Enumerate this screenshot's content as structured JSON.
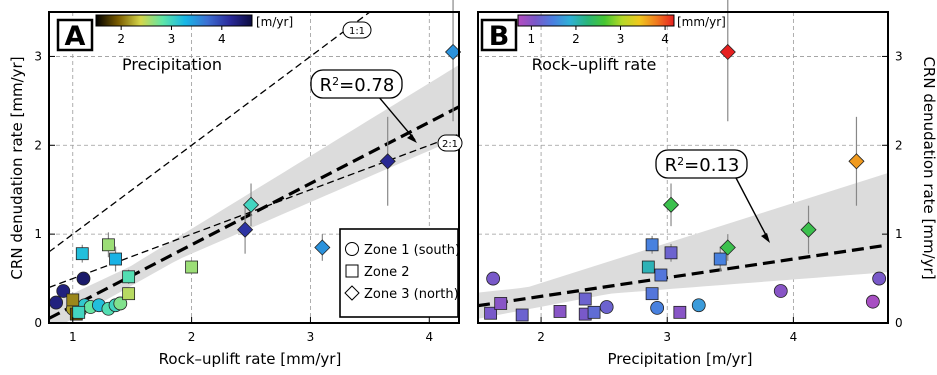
{
  "chart_data": [
    {
      "type": "scatter",
      "panel_label": "A",
      "xlabel": "Rock–uplift rate [mm/yr]",
      "ylabel": "CRN denudation rate [mm/yr]",
      "xlim": [
        0.8,
        4.25
      ],
      "ylim": [
        0,
        3.5
      ],
      "xticks": [
        1,
        2,
        3,
        4
      ],
      "yticks": [
        0,
        1,
        2,
        3
      ],
      "grid": true,
      "colorbar": {
        "label": "[m/yr]",
        "title": "Precipitation",
        "ticks": [
          2,
          3,
          4
        ],
        "range": [
          1.5,
          4.6
        ],
        "colors": [
          "#000000",
          "#7a5c00",
          "#d6d64a",
          "#5ee6a8",
          "#17b7e6",
          "#3d6fd2",
          "#2b2b9c",
          "#0c0c40"
        ],
        "placement": "top-left"
      },
      "reference_lines": [
        {
          "label": "1:1",
          "slope": 1
        },
        {
          "label": "2:1",
          "slope": 0.5
        }
      ],
      "fit": {
        "slope": 0.69,
        "intercept": -0.5,
        "ci_low_intercept": -0.38,
        "ci_low_slope": 0.58,
        "ci_high_intercept": -0.58,
        "ci_high_slope": 0.82
      },
      "annotation": {
        "r2_prefix": "R",
        "r2_sup": "2",
        "r2_value": "=0.78"
      },
      "legend": {
        "placement": "bottom-right",
        "entries": [
          {
            "shape": "circle",
            "label": "Zone 1 (south)"
          },
          {
            "shape": "square",
            "label": "Zone 2"
          },
          {
            "shape": "diamond",
            "label": "Zone 3 (north)"
          }
        ]
      },
      "points": [
        {
          "zone": 1,
          "x": 0.86,
          "y": 0.23,
          "c": 4.3,
          "err": 0.0
        },
        {
          "zone": 1,
          "x": 0.92,
          "y": 0.36,
          "c": 4.3,
          "err": 0.0
        },
        {
          "zone": 1,
          "x": 1.09,
          "y": 0.5,
          "c": 4.4,
          "err": 0.0
        },
        {
          "zone": 1,
          "x": 1.0,
          "y": 0.16,
          "c": 2.2,
          "err": 0.0
        },
        {
          "zone": 1,
          "x": 1.06,
          "y": 0.14,
          "c": 2.6,
          "err": 0.0
        },
        {
          "zone": 1,
          "x": 1.1,
          "y": 0.2,
          "c": 3.1,
          "err": 0.0
        },
        {
          "zone": 1,
          "x": 1.15,
          "y": 0.18,
          "c": 2.8,
          "err": 0.0
        },
        {
          "zone": 1,
          "x": 1.22,
          "y": 0.2,
          "c": 3.2,
          "err": 0.0
        },
        {
          "zone": 1,
          "x": 1.3,
          "y": 0.16,
          "c": 2.9,
          "err": 0.0
        },
        {
          "zone": 1,
          "x": 1.36,
          "y": 0.2,
          "c": 3.0,
          "err": 0.0
        },
        {
          "zone": 1,
          "x": 1.4,
          "y": 0.22,
          "c": 2.7,
          "err": 0.0
        },
        {
          "zone": 2,
          "x": 1.0,
          "y": 0.26,
          "c": 2.1,
          "err": 0.0
        },
        {
          "zone": 2,
          "x": 1.03,
          "y": 0.1,
          "c": 1.9,
          "err": 0.0
        },
        {
          "zone": 2,
          "x": 1.05,
          "y": 0.12,
          "c": 3.0,
          "err": 0.0
        },
        {
          "zone": 2,
          "x": 1.08,
          "y": 0.78,
          "c": 3.2,
          "err": 0.1
        },
        {
          "zone": 2,
          "x": 1.3,
          "y": 0.88,
          "c": 2.6,
          "err": 0.14
        },
        {
          "zone": 2,
          "x": 1.36,
          "y": 0.72,
          "c": 3.3,
          "err": 0.14
        },
        {
          "zone": 2,
          "x": 1.47,
          "y": 0.52,
          "c": 2.9,
          "err": 0.08
        },
        {
          "zone": 2,
          "x": 1.47,
          "y": 0.33,
          "c": 2.5,
          "err": 0.06
        },
        {
          "zone": 2,
          "x": 2.0,
          "y": 0.63,
          "c": 2.6,
          "err": 0.06
        },
        {
          "zone": 3,
          "x": 2.45,
          "y": 1.05,
          "c": 4.1,
          "err": 0.27
        },
        {
          "zone": 3,
          "x": 2.5,
          "y": 1.33,
          "c": 3.0,
          "err": 0.24
        },
        {
          "zone": 3,
          "x": 3.1,
          "y": 0.85,
          "c": 3.5,
          "err": 0.15
        },
        {
          "zone": 3,
          "x": 3.65,
          "y": 1.82,
          "c": 4.2,
          "err": 0.5
        },
        {
          "zone": 3,
          "x": 4.2,
          "y": 3.05,
          "c": 3.5,
          "err": 0.78
        }
      ]
    },
    {
      "type": "scatter",
      "panel_label": "B",
      "xlabel": "Precipitation [m/yr]",
      "ylabel": "CRN denudation rate [mm/yr]",
      "xlim": [
        1.5,
        4.75
      ],
      "ylim": [
        0,
        3.5
      ],
      "xticks": [
        2,
        3,
        4
      ],
      "yticks": [
        0,
        1,
        2,
        3
      ],
      "grid": true,
      "colorbar": {
        "label": "[mm/yr]",
        "title": "Rock–uplift rate",
        "ticks": [
          1,
          2,
          3,
          4
        ],
        "range": [
          0.7,
          4.2
        ],
        "colors": [
          "#b64cc0",
          "#7a58c8",
          "#4a7ee0",
          "#2fb0d6",
          "#29b57a",
          "#46c632",
          "#b5d928",
          "#f0c81e",
          "#f07a1e",
          "#e62020"
        ],
        "placement": "top-left"
      },
      "fit": {
        "slope": 0.21,
        "intercept": -0.12,
        "ci_low_intercept": 0.05,
        "ci_low_slope": 0.11,
        "ci_high_intercept": -0.45,
        "ci_high_slope": 0.45
      },
      "annotation": {
        "r2_prefix": "R",
        "r2_sup": "2",
        "r2_value": "=0.13"
      },
      "points": [
        {
          "zone": 1,
          "x": 1.62,
          "y": 0.5,
          "c": 1.1,
          "err": 0.0
        },
        {
          "zone": 1,
          "x": 2.52,
          "y": 0.18,
          "c": 1.2,
          "err": 0.0
        },
        {
          "zone": 1,
          "x": 3.25,
          "y": 0.2,
          "c": 1.7,
          "err": 0.0
        },
        {
          "zone": 1,
          "x": 3.9,
          "y": 0.36,
          "c": 1.0,
          "err": 0.0
        },
        {
          "zone": 1,
          "x": 4.63,
          "y": 0.24,
          "c": 0.8,
          "err": 0.0
        },
        {
          "zone": 1,
          "x": 4.68,
          "y": 0.5,
          "c": 1.1,
          "err": 0.0
        },
        {
          "zone": 1,
          "x": 2.92,
          "y": 0.17,
          "c": 1.5,
          "err": 0.0
        },
        {
          "zone": 2,
          "x": 1.6,
          "y": 0.11,
          "c": 1.1,
          "err": 0.0
        },
        {
          "zone": 2,
          "x": 1.68,
          "y": 0.22,
          "c": 1.0,
          "err": 0.0
        },
        {
          "zone": 2,
          "x": 1.85,
          "y": 0.09,
          "c": 1.2,
          "err": 0.0
        },
        {
          "zone": 2,
          "x": 2.15,
          "y": 0.13,
          "c": 1.0,
          "err": 0.0
        },
        {
          "zone": 2,
          "x": 2.35,
          "y": 0.1,
          "c": 1.1,
          "err": 0.0
        },
        {
          "zone": 2,
          "x": 2.35,
          "y": 0.27,
          "c": 1.2,
          "err": 0.0
        },
        {
          "zone": 2,
          "x": 2.42,
          "y": 0.12,
          "c": 1.3,
          "err": 0.0
        },
        {
          "zone": 2,
          "x": 2.85,
          "y": 0.63,
          "c": 2.0,
          "err": 0.06
        },
        {
          "zone": 2,
          "x": 2.88,
          "y": 0.33,
          "c": 1.4,
          "err": 0.06
        },
        {
          "zone": 2,
          "x": 2.88,
          "y": 0.88,
          "c": 1.5,
          "err": 0.1
        },
        {
          "zone": 2,
          "x": 2.95,
          "y": 0.54,
          "c": 1.4,
          "err": 0.06
        },
        {
          "zone": 2,
          "x": 3.03,
          "y": 0.79,
          "c": 1.2,
          "err": 0.1
        },
        {
          "zone": 2,
          "x": 3.1,
          "y": 0.12,
          "c": 1.0,
          "err": 0.0
        },
        {
          "zone": 2,
          "x": 3.42,
          "y": 0.72,
          "c": 1.5,
          "err": 0.14
        },
        {
          "zone": 3,
          "x": 3.03,
          "y": 1.33,
          "c": 2.5,
          "err": 0.24
        },
        {
          "zone": 3,
          "x": 3.48,
          "y": 0.85,
          "c": 2.5,
          "err": 0.15
        },
        {
          "zone": 3,
          "x": 3.48,
          "y": 3.05,
          "c": 4.2,
          "err": 0.78
        },
        {
          "zone": 3,
          "x": 4.12,
          "y": 1.05,
          "c": 2.5,
          "err": 0.27
        },
        {
          "zone": 3,
          "x": 4.5,
          "y": 1.82,
          "c": 3.65,
          "err": 0.5
        }
      ]
    }
  ]
}
